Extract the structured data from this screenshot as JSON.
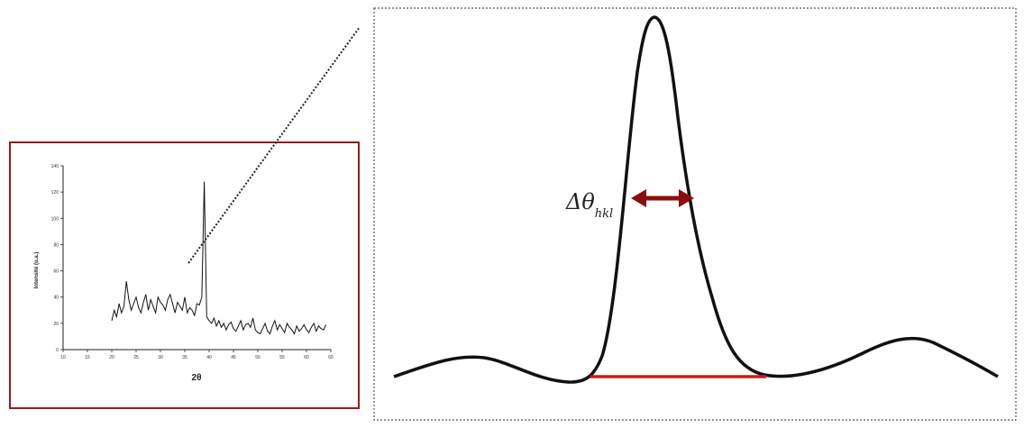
{
  "colors": {
    "frame_border": "#9a1b1b",
    "zoom_border": "#555555",
    "curve": "#111111",
    "fwhm_arrow": "#8b0d0d",
    "baseline": "#c81e1e"
  },
  "inset": {
    "xlabel": "2θ",
    "ylabel": "Intensité (u.a.)",
    "x_ticks": [
      "10",
      "15",
      "20",
      "25",
      "30",
      "35",
      "40",
      "45",
      "50",
      "55",
      "60",
      "65"
    ],
    "y_ticks": [
      "0",
      "20",
      "40",
      "60",
      "80",
      "100",
      "120",
      "140"
    ]
  },
  "zoom": {
    "delta_symbol": "Δθ",
    "delta_subscript": "hkl"
  },
  "chart_data": {
    "type": "line",
    "xlabel": "2θ",
    "ylabel": "Intensité (u.a.)",
    "xlim": [
      10,
      65
    ],
    "ylim": [
      0,
      140
    ],
    "series": [
      {
        "x": [
          20,
          20.5,
          21,
          21.5,
          22,
          22.5,
          23,
          23.5,
          24,
          24.5,
          25,
          25.5,
          26,
          26.5,
          27,
          27.5,
          28,
          28.5,
          29,
          29.5,
          30,
          30.5,
          31,
          31.5,
          32,
          32.5,
          33,
          33.5,
          34,
          34.5,
          35,
          35.5,
          36,
          36.5,
          37,
          37.5,
          38,
          38.5,
          39,
          39.5,
          40,
          40.5,
          41,
          41.5,
          42,
          42.5,
          43,
          43.5,
          44,
          44.5,
          45,
          45.5,
          46,
          46.5,
          47,
          47.5,
          48,
          48.5,
          49,
          49.5,
          50,
          50.5,
          51,
          51.5,
          52,
          52.5,
          53,
          53.5,
          54,
          54.5,
          55,
          55.5,
          56,
          56.5,
          57,
          57.5,
          58,
          58.5,
          59,
          59.5,
          60,
          60.5,
          61,
          61.5,
          62,
          62.5,
          63,
          63.5,
          64
        ],
        "y": [
          22,
          30,
          25,
          35,
          28,
          33,
          52,
          38,
          30,
          35,
          40,
          32,
          28,
          36,
          42,
          30,
          38,
          33,
          28,
          40,
          36,
          34,
          30,
          38,
          42,
          35,
          28,
          36,
          33,
          30,
          40,
          28,
          32,
          30,
          26,
          35,
          34,
          40,
          128,
          25,
          22,
          20,
          24,
          18,
          22,
          17,
          20,
          15,
          19,
          21,
          16,
          14,
          18,
          22,
          15,
          19,
          20,
          17,
          24,
          15,
          13,
          12,
          16,
          20,
          14,
          12,
          18,
          22,
          15,
          19,
          16,
          13,
          20,
          17,
          15,
          12,
          18,
          14,
          16,
          19,
          15,
          13,
          17,
          20,
          14,
          18,
          16,
          15,
          19
        ]
      }
    ]
  }
}
